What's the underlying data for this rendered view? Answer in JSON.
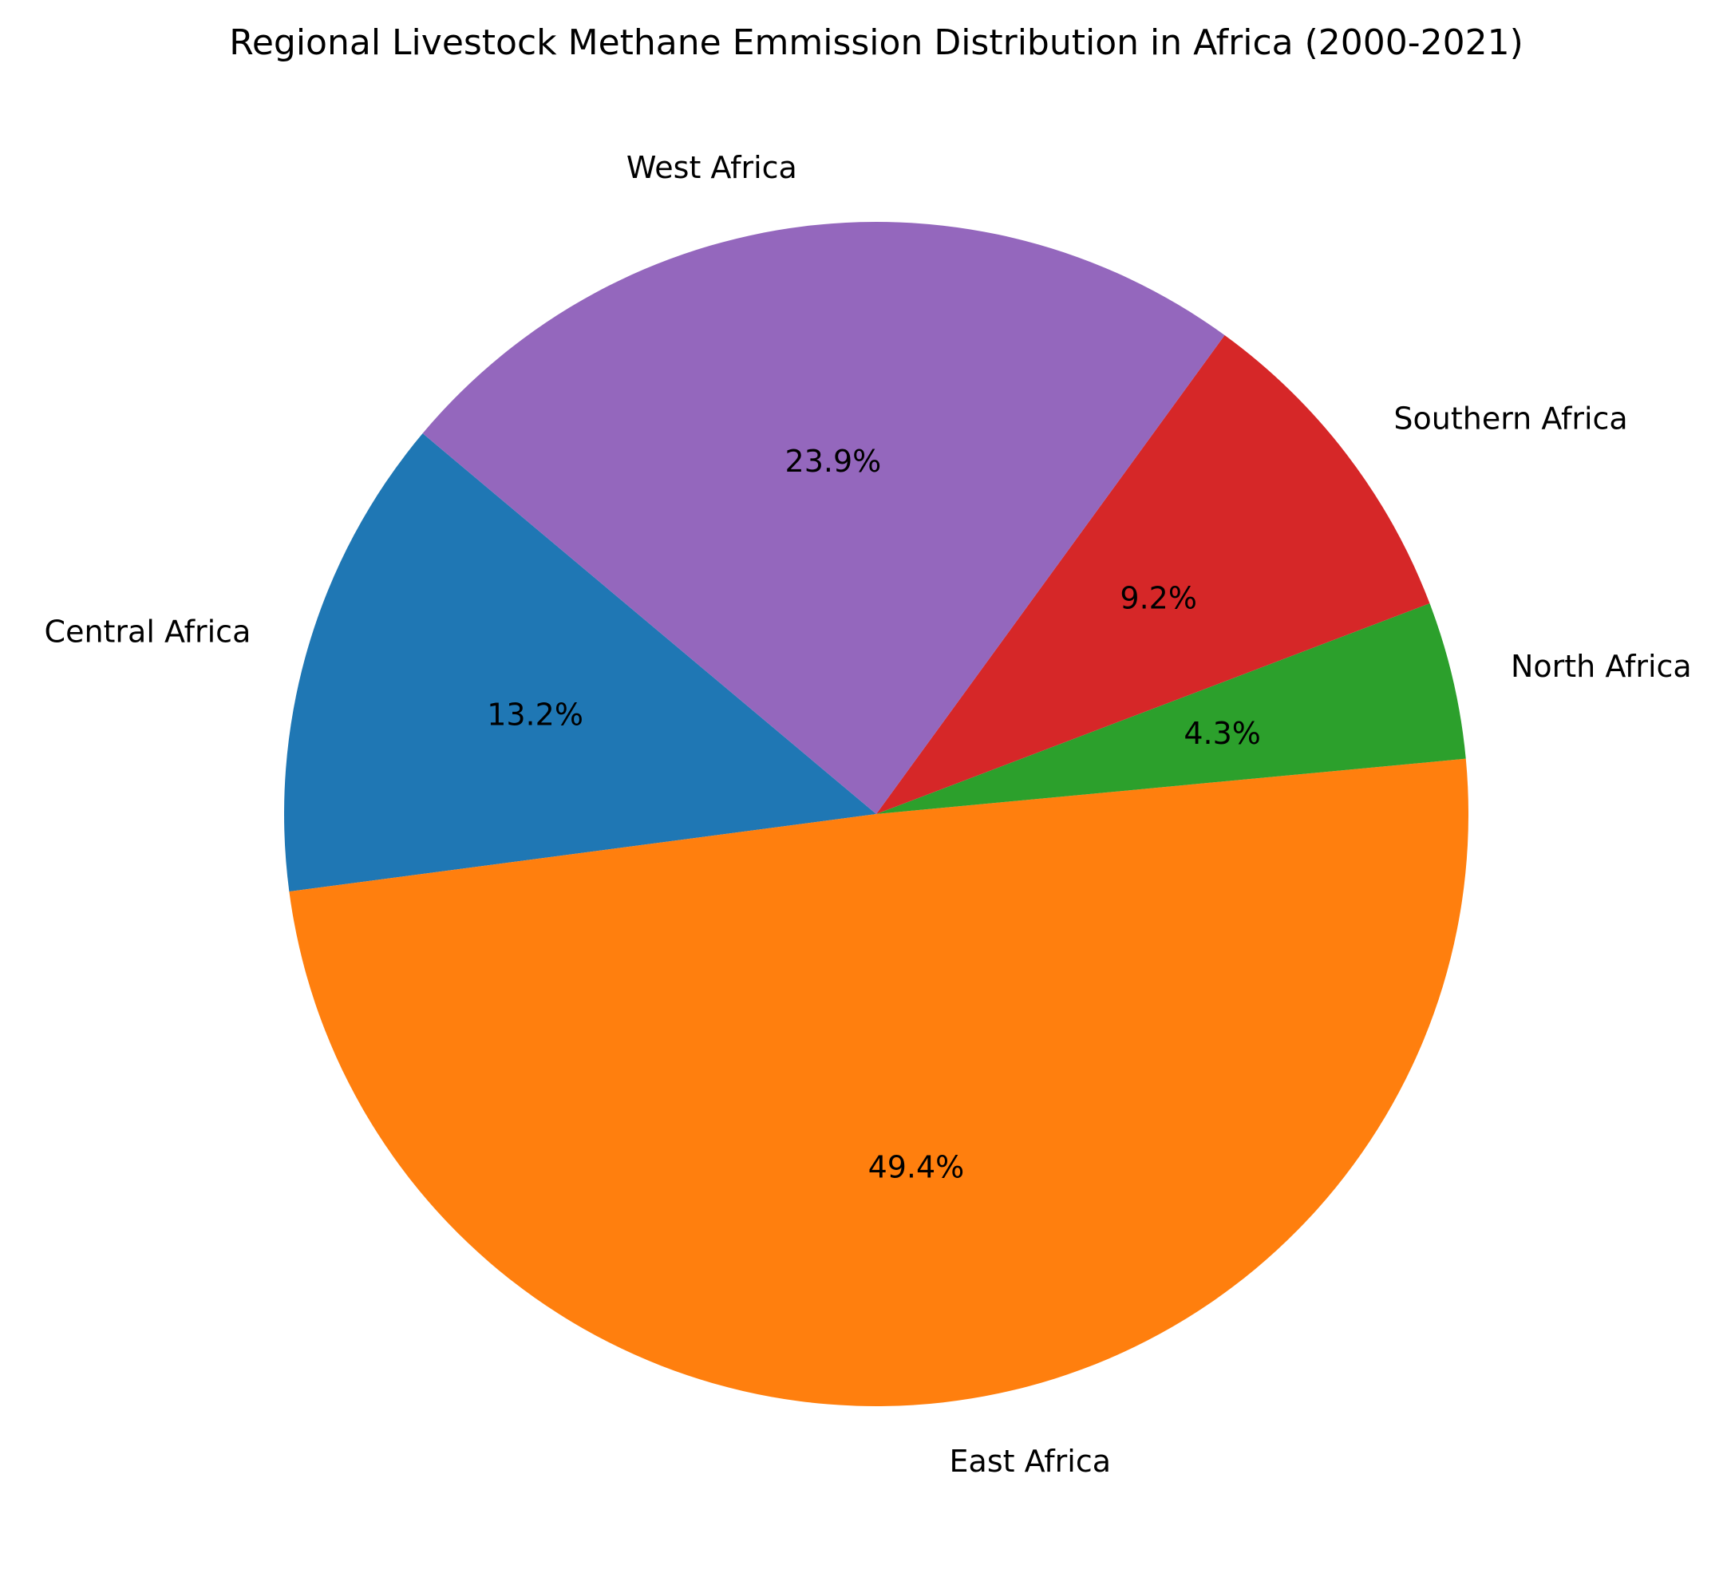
{
  "chart_data": {
    "type": "pie",
    "title": "Regional Livestock Methane Emmission Distribution in Africa (2000-2021)",
    "categories": [
      "Central Africa",
      "East Africa",
      "North Africa",
      "Southern Africa",
      "West Africa"
    ],
    "values": [
      13.2,
      49.4,
      4.3,
      9.2,
      23.9
    ],
    "value_labels": [
      "13.2%",
      "49.4%",
      "4.3%",
      "9.2%",
      "23.9%"
    ],
    "colors": [
      "#1f77b4",
      "#ff7f0e",
      "#2ca02c",
      "#d62728",
      "#9467bd"
    ],
    "start_angle_deg": 140,
    "direction": "counterclockwise",
    "legend": "none"
  }
}
